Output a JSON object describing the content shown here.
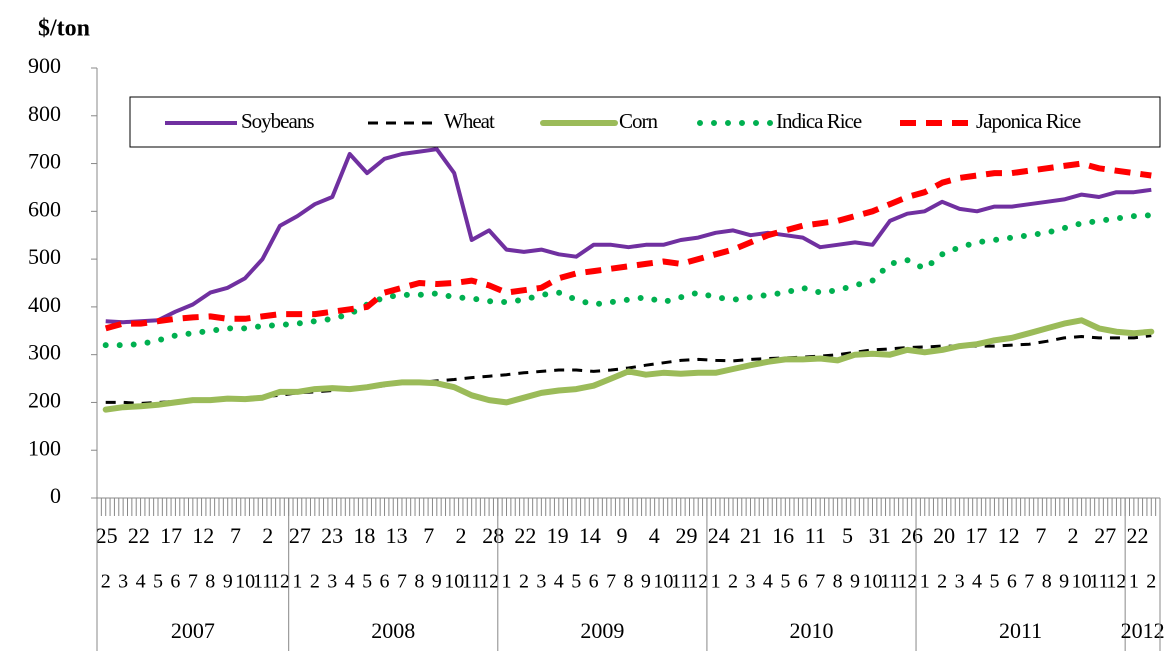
{
  "chart_data": {
    "type": "line",
    "y_axis_label": "$/ton",
    "ylim": [
      0,
      900
    ],
    "yticks": [
      0,
      100,
      200,
      300,
      400,
      500,
      600,
      700,
      800,
      900
    ],
    "x_day_labels": [
      25,
      22,
      17,
      12,
      7,
      2,
      27,
      23,
      18,
      13,
      7,
      2,
      28,
      22,
      19,
      14,
      9,
      4,
      29,
      24,
      21,
      16,
      11,
      5,
      31,
      26,
      20,
      17,
      12,
      7,
      2,
      27,
      22
    ],
    "categories": [
      2,
      3,
      4,
      5,
      6,
      7,
      8,
      9,
      10,
      11,
      12,
      1,
      2,
      3,
      4,
      5,
      6,
      7,
      8,
      9,
      10,
      11,
      12,
      1,
      2,
      3,
      4,
      5,
      6,
      7,
      8,
      9,
      10,
      11,
      12,
      1,
      2,
      3,
      4,
      5,
      6,
      7,
      8,
      9,
      10,
      11,
      12,
      1,
      2,
      3,
      4,
      5,
      6,
      7,
      8,
      9,
      10,
      11,
      12,
      1,
      2
    ],
    "years": [
      "2007",
      "2008",
      "2009",
      "2010",
      "2011",
      "2012"
    ],
    "legend": "top",
    "series": [
      {
        "name": "Soybeans",
        "color": "#7030a0",
        "style": "solid",
        "values": [
          370,
          368,
          370,
          372,
          390,
          405,
          430,
          440,
          460,
          500,
          570,
          590,
          615,
          630,
          720,
          680,
          710,
          720,
          725,
          730,
          680,
          540,
          560,
          520,
          515,
          520,
          510,
          505,
          530,
          530,
          525,
          530,
          530,
          540,
          545,
          555,
          560,
          550,
          555,
          550,
          545,
          525,
          530,
          535,
          530,
          580,
          595,
          600,
          620,
          605,
          600,
          610,
          610,
          615,
          620,
          625,
          635,
          630,
          640,
          640,
          645
        ]
      },
      {
        "name": "Wheat",
        "color": "#000000",
        "style": "dashed",
        "values": [
          200,
          200,
          198,
          200,
          202,
          205,
          207,
          208,
          210,
          212,
          215,
          220,
          222,
          225,
          228,
          230,
          235,
          240,
          242,
          245,
          248,
          252,
          255,
          258,
          262,
          265,
          268,
          268,
          265,
          268,
          272,
          278,
          283,
          288,
          290,
          288,
          287,
          290,
          292,
          293,
          295,
          297,
          300,
          305,
          310,
          312,
          315,
          316,
          318,
          318,
          318,
          318,
          320,
          322,
          328,
          335,
          338,
          335,
          335,
          335,
          340
        ]
      },
      {
        "name": "Corn",
        "color": "#9bbb59",
        "style": "thick",
        "values": [
          185,
          190,
          192,
          195,
          200,
          205,
          205,
          208,
          207,
          210,
          222,
          222,
          228,
          230,
          228,
          232,
          238,
          242,
          242,
          240,
          232,
          215,
          205,
          200,
          210,
          220,
          225,
          228,
          235,
          250,
          265,
          258,
          262,
          260,
          262,
          262,
          270,
          278,
          285,
          290,
          290,
          292,
          288,
          300,
          302,
          300,
          310,
          305,
          310,
          318,
          322,
          330,
          335,
          345,
          355,
          365,
          372,
          355,
          348,
          345,
          348
        ]
      },
      {
        "name": "Indica Rice",
        "color": "#00b050",
        "style": "dotted",
        "values": [
          320,
          320,
          322,
          330,
          340,
          345,
          350,
          355,
          355,
          360,
          362,
          365,
          370,
          375,
          385,
          405,
          420,
          425,
          425,
          428,
          420,
          418,
          412,
          410,
          415,
          425,
          430,
          415,
          405,
          410,
          415,
          420,
          410,
          420,
          430,
          420,
          415,
          420,
          425,
          430,
          440,
          430,
          435,
          445,
          455,
          490,
          498,
          480,
          510,
          525,
          535,
          540,
          545,
          550,
          555,
          565,
          575,
          580,
          585,
          590,
          592
        ]
      },
      {
        "name": "Japonica Rice",
        "color": "#ff0000",
        "style": "dashed-thick",
        "values": [
          355,
          365,
          365,
          370,
          375,
          378,
          380,
          375,
          375,
          380,
          385,
          385,
          385,
          390,
          395,
          400,
          430,
          440,
          450,
          448,
          450,
          455,
          445,
          430,
          435,
          440,
          460,
          470,
          475,
          480,
          485,
          490,
          495,
          490,
          500,
          510,
          520,
          535,
          550,
          560,
          570,
          575,
          580,
          590,
          600,
          615,
          630,
          640,
          660,
          670,
          675,
          680,
          680,
          685,
          690,
          695,
          700,
          690,
          685,
          680,
          675
        ]
      }
    ]
  }
}
